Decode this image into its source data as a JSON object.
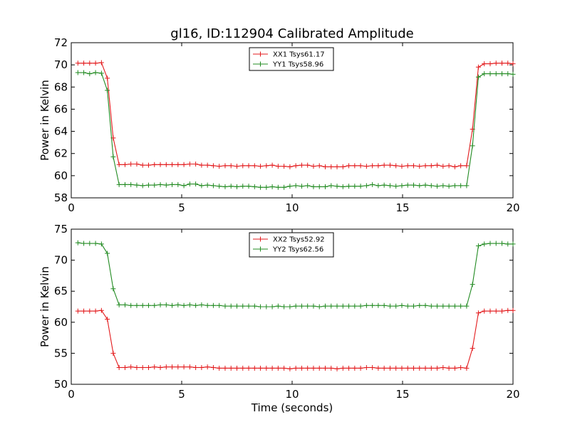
{
  "figure": {
    "title": "gl16, ID:112904 Calibrated Amplitude",
    "xlabel": "Time (seconds)"
  },
  "chart_data": [
    {
      "type": "line",
      "title": "gl16, ID:112904 Calibrated Amplitude",
      "xlabel": "",
      "ylabel": "Power in Kelvin",
      "xlim": [
        0,
        20
      ],
      "ylim": [
        58,
        72
      ],
      "xticks": [
        0,
        5,
        10,
        15,
        20
      ],
      "yticks": [
        58,
        60,
        62,
        64,
        66,
        68,
        70,
        72
      ],
      "grid": false,
      "legend_position": "top-center",
      "marker": "+",
      "x": [
        0.3,
        0.5667,
        0.8333,
        1.1,
        1.3667,
        1.6333,
        1.9,
        2.1667,
        2.4333,
        2.7,
        2.9667,
        3.2333,
        3.5,
        3.7667,
        4.0333,
        4.3,
        4.5667,
        4.8333,
        5.1,
        5.3667,
        5.6333,
        5.9,
        6.1667,
        6.4333,
        6.7,
        6.9667,
        7.2333,
        7.5,
        7.7667,
        8.0333,
        8.3,
        8.5667,
        8.8333,
        9.1,
        9.3667,
        9.6333,
        9.9,
        10.1667,
        10.4333,
        10.7,
        10.9667,
        11.2333,
        11.5,
        11.7667,
        12.0333,
        12.3,
        12.5667,
        12.8333,
        13.1,
        13.3667,
        13.6333,
        13.9,
        14.1667,
        14.4333,
        14.7,
        14.9667,
        15.2333,
        15.5,
        15.7667,
        16.0333,
        16.3,
        16.5667,
        16.8333,
        17.1,
        17.3667,
        17.6333,
        17.9,
        18.1667,
        18.4333,
        18.7,
        18.9667,
        19.2333,
        19.5,
        19.7667,
        20.0
      ],
      "series": [
        {
          "name": "XX1 Tsys61.17",
          "color": "#e31a1c",
          "values": [
            70.15,
            70.15,
            70.15,
            70.15,
            70.2,
            68.8,
            63.4,
            61.0,
            61.0,
            61.05,
            61.05,
            60.95,
            60.95,
            61.0,
            61.0,
            61.0,
            61.0,
            61.0,
            61.0,
            61.05,
            61.05,
            60.95,
            60.95,
            60.9,
            60.85,
            60.9,
            60.9,
            60.85,
            60.9,
            60.9,
            60.9,
            60.85,
            60.9,
            60.95,
            60.85,
            60.85,
            60.8,
            60.9,
            60.95,
            60.95,
            60.85,
            60.9,
            60.8,
            60.8,
            60.8,
            60.8,
            60.9,
            60.9,
            60.9,
            60.85,
            60.9,
            60.9,
            60.95,
            60.95,
            60.9,
            60.85,
            60.9,
            60.9,
            60.85,
            60.9,
            60.9,
            60.95,
            60.85,
            60.9,
            60.8,
            60.9,
            60.9,
            64.2,
            69.8,
            70.1,
            70.1,
            70.15,
            70.15,
            70.15,
            70.1
          ]
        },
        {
          "name": "YY1 Tsys58.96",
          "color": "#228b22",
          "values": [
            69.3,
            69.3,
            69.2,
            69.3,
            69.25,
            67.7,
            61.7,
            59.2,
            59.2,
            59.2,
            59.15,
            59.1,
            59.15,
            59.15,
            59.2,
            59.15,
            59.2,
            59.2,
            59.1,
            59.25,
            59.25,
            59.1,
            59.15,
            59.1,
            59.05,
            59.0,
            59.05,
            59.0,
            59.05,
            59.05,
            59.0,
            58.95,
            58.95,
            59.0,
            58.95,
            58.95,
            59.05,
            59.1,
            59.05,
            59.1,
            59.0,
            59.0,
            59.0,
            59.1,
            59.05,
            59.0,
            59.05,
            59.05,
            59.05,
            59.1,
            59.2,
            59.1,
            59.15,
            59.1,
            59.05,
            59.1,
            59.15,
            59.15,
            59.1,
            59.15,
            59.1,
            59.05,
            59.1,
            59.05,
            59.1,
            59.1,
            59.1,
            62.7,
            68.9,
            69.2,
            69.2,
            69.2,
            69.2,
            69.2,
            69.15
          ]
        }
      ]
    },
    {
      "type": "line",
      "title": "",
      "xlabel": "Time (seconds)",
      "ylabel": "Power in Kelvin",
      "xlim": [
        0,
        20
      ],
      "ylim": [
        50,
        75
      ],
      "xticks": [
        0,
        5,
        10,
        15,
        20
      ],
      "yticks": [
        50,
        55,
        60,
        65,
        70,
        75
      ],
      "grid": false,
      "legend_position": "top-center",
      "marker": "+",
      "x": [
        0.3,
        0.5667,
        0.8333,
        1.1,
        1.3667,
        1.6333,
        1.9,
        2.1667,
        2.4333,
        2.7,
        2.9667,
        3.2333,
        3.5,
        3.7667,
        4.0333,
        4.3,
        4.5667,
        4.8333,
        5.1,
        5.3667,
        5.6333,
        5.9,
        6.1667,
        6.4333,
        6.7,
        6.9667,
        7.2333,
        7.5,
        7.7667,
        8.0333,
        8.3,
        8.5667,
        8.8333,
        9.1,
        9.3667,
        9.6333,
        9.9,
        10.1667,
        10.4333,
        10.7,
        10.9667,
        11.2333,
        11.5,
        11.7667,
        12.0333,
        12.3,
        12.5667,
        12.8333,
        13.1,
        13.3667,
        13.6333,
        13.9,
        14.1667,
        14.4333,
        14.7,
        14.9667,
        15.2333,
        15.5,
        15.7667,
        16.0333,
        16.3,
        16.5667,
        16.8333,
        17.1,
        17.3667,
        17.6333,
        17.9,
        18.1667,
        18.4333,
        18.7,
        18.9667,
        19.2333,
        19.5,
        19.7667,
        20.0
      ],
      "series": [
        {
          "name": "XX2 Tsys52.92",
          "color": "#e31a1c",
          "values": [
            61.8,
            61.8,
            61.8,
            61.8,
            61.9,
            60.5,
            55.0,
            52.7,
            52.7,
            52.8,
            52.7,
            52.7,
            52.7,
            52.8,
            52.7,
            52.8,
            52.8,
            52.8,
            52.8,
            52.8,
            52.7,
            52.7,
            52.8,
            52.7,
            52.6,
            52.6,
            52.6,
            52.6,
            52.6,
            52.6,
            52.6,
            52.6,
            52.6,
            52.6,
            52.6,
            52.6,
            52.5,
            52.6,
            52.6,
            52.6,
            52.6,
            52.6,
            52.6,
            52.6,
            52.5,
            52.6,
            52.6,
            52.6,
            52.6,
            52.7,
            52.7,
            52.6,
            52.6,
            52.6,
            52.6,
            52.6,
            52.6,
            52.6,
            52.6,
            52.6,
            52.6,
            52.6,
            52.7,
            52.6,
            52.6,
            52.7,
            52.6,
            55.8,
            61.5,
            61.8,
            61.8,
            61.8,
            61.8,
            61.9,
            61.9
          ]
        },
        {
          "name": "YY2 Tsys62.56",
          "color": "#228b22",
          "values": [
            72.8,
            72.7,
            72.7,
            72.7,
            72.6,
            71.1,
            65.4,
            62.8,
            62.8,
            62.7,
            62.7,
            62.7,
            62.7,
            62.7,
            62.8,
            62.8,
            62.7,
            62.8,
            62.7,
            62.8,
            62.7,
            62.8,
            62.7,
            62.7,
            62.7,
            62.6,
            62.6,
            62.6,
            62.6,
            62.6,
            62.6,
            62.5,
            62.5,
            62.5,
            62.6,
            62.5,
            62.5,
            62.6,
            62.6,
            62.6,
            62.6,
            62.5,
            62.6,
            62.6,
            62.6,
            62.6,
            62.6,
            62.6,
            62.6,
            62.7,
            62.7,
            62.7,
            62.7,
            62.6,
            62.6,
            62.7,
            62.6,
            62.6,
            62.7,
            62.7,
            62.6,
            62.6,
            62.6,
            62.6,
            62.6,
            62.6,
            62.6,
            66.1,
            72.3,
            72.6,
            72.7,
            72.7,
            72.7,
            72.6,
            72.6
          ]
        }
      ]
    }
  ]
}
